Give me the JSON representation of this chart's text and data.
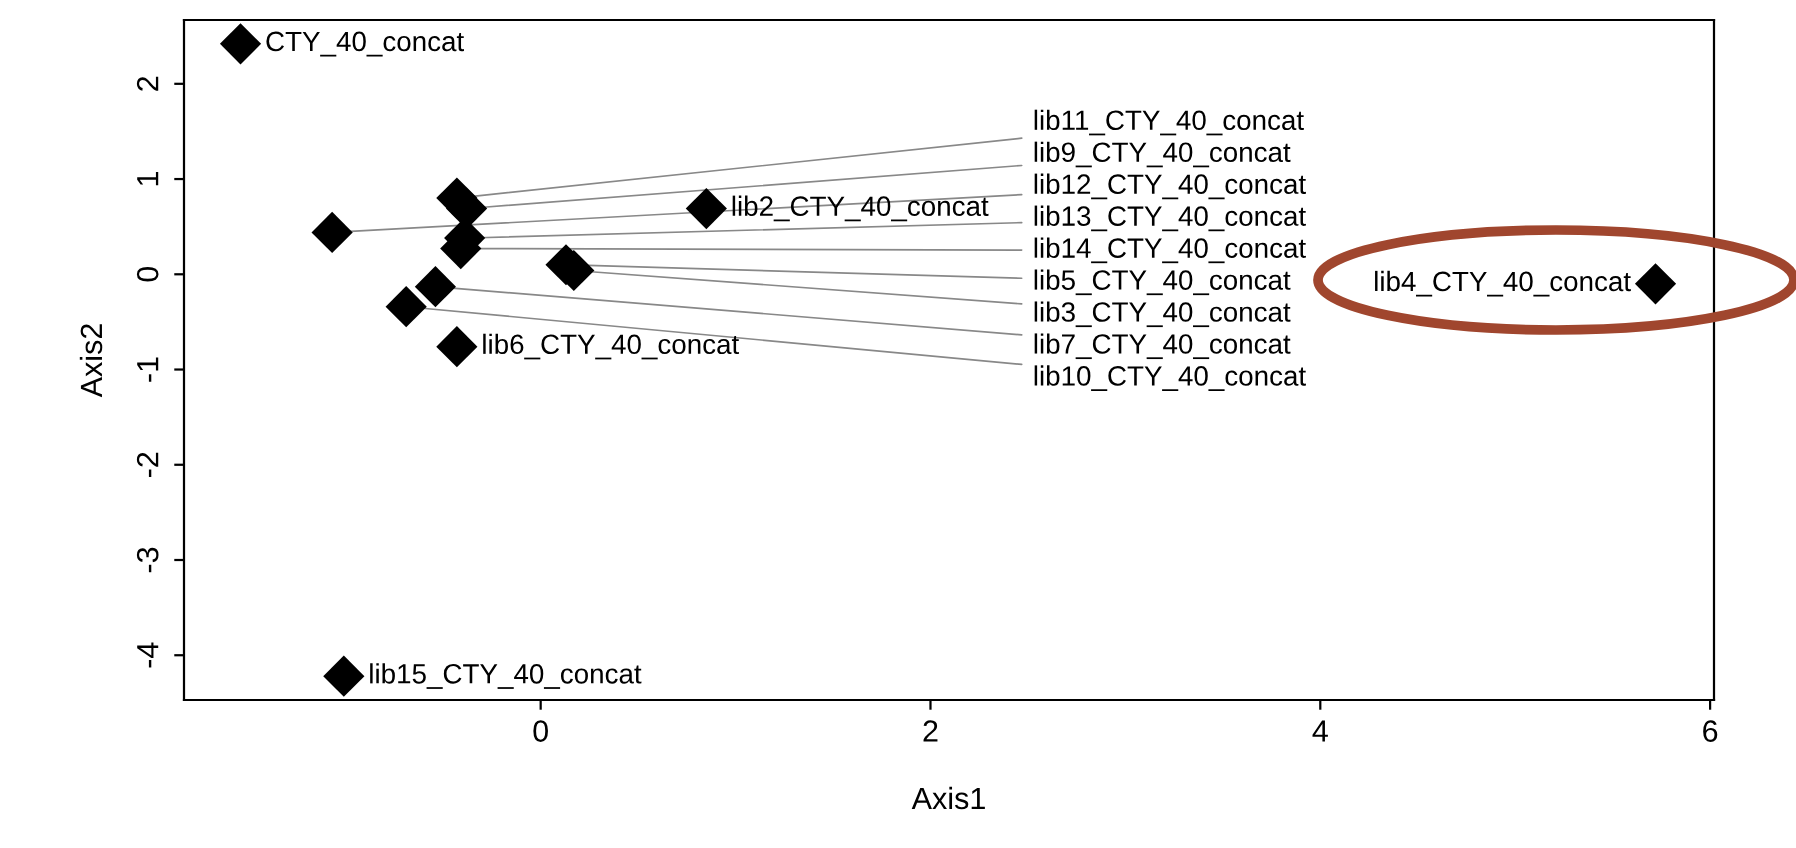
{
  "chart_data": {
    "type": "scatter",
    "xlabel": "Axis1",
    "ylabel": "Axis2",
    "xlim": [
      -1.83,
      6.02
    ],
    "ylim": [
      -4.47,
      2.67
    ],
    "xticks": [
      0,
      2,
      4,
      6
    ],
    "yticks": [
      -4,
      -3,
      -2,
      -1,
      0,
      1,
      2
    ],
    "grid": false,
    "marker": "diamond",
    "series": [
      {
        "color": "#000000",
        "x": [
          -1.54,
          -0.43,
          -0.38,
          0.85,
          -1.07,
          -0.39,
          -0.41,
          0.13,
          0.17,
          -0.54,
          -0.69,
          -0.43,
          -1.01,
          5.72
        ],
        "values": [
          2.42,
          0.8,
          0.69,
          0.69,
          0.44,
          0.38,
          0.27,
          0.1,
          0.04,
          -0.13,
          -0.34,
          -0.76,
          -4.22,
          -0.1
        ]
      }
    ],
    "annotations": [
      {
        "text": "CTY_40_concat",
        "x": -1.54,
        "y": 2.42
      },
      {
        "text": "lib11_CTY_40_concat",
        "x": -0.43,
        "y": 0.8
      },
      {
        "text": "lib9_CTY_40_concat",
        "x": -0.38,
        "y": 0.69
      },
      {
        "text": "lib2_CTY_40_concat",
        "x": 0.85,
        "y": 0.69
      },
      {
        "text": "lib12_CTY_40_concat",
        "x": -1.07,
        "y": 0.44
      },
      {
        "text": "lib13_CTY_40_concat",
        "x": -0.39,
        "y": 0.38
      },
      {
        "text": "lib14_CTY_40_concat",
        "x": -0.41,
        "y": 0.27
      },
      {
        "text": "lib5_CTY_40_concat",
        "x": 0.13,
        "y": 0.1
      },
      {
        "text": "lib3_CTY_40_concat",
        "x": 0.17,
        "y": 0.04
      },
      {
        "text": "lib7_CTY_40_concat",
        "x": -0.54,
        "y": -0.13
      },
      {
        "text": "lib10_CTY_40_concat",
        "x": -0.69,
        "y": -0.34
      },
      {
        "text": "lib6_CTY_40_concat",
        "x": -0.43,
        "y": -0.76
      },
      {
        "text": "lib15_CTY_40_concat",
        "x": -1.01,
        "y": -4.22
      },
      {
        "text": "lib4_CTY_40_concat",
        "x": 5.72,
        "y": -0.1
      }
    ]
  }
}
